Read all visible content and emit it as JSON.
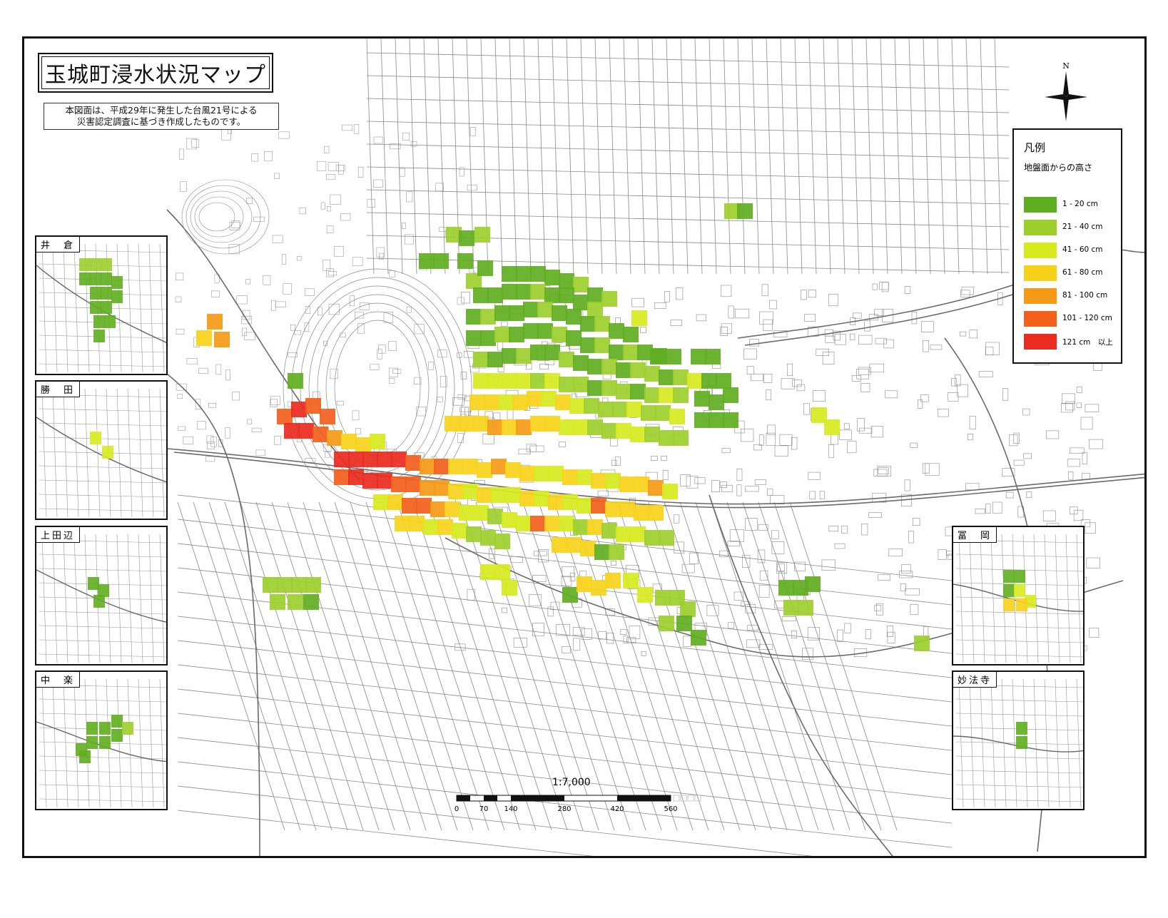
{
  "title": "玉城町浸水状況マップ",
  "note": [
    "本図面は、平成29年に発生した台風21号による",
    "災害認定調査に基づき作成したものです。"
  ],
  "legend": {
    "title": "凡例",
    "subtitle": "地盤面からの高さ",
    "items": [
      {
        "label": "1 - 20 cm",
        "color": "#5fae1f"
      },
      {
        "label": "21 - 40 cm",
        "color": "#9ccf2c"
      },
      {
        "label": "41 - 60 cm",
        "color": "#d7ea1d"
      },
      {
        "label": "61 - 80 cm",
        "color": "#f7d21a"
      },
      {
        "label": "81 - 100 cm",
        "color": "#f59a16"
      },
      {
        "label": "101 - 120 cm",
        "color": "#f2601b"
      },
      {
        "label": "121 cm　以上",
        "color": "#ea2b1f"
      }
    ]
  },
  "compass": {
    "north_label": "N"
  },
  "scale": {
    "ratio": "1:7,000",
    "ticks": [
      "0",
      "70",
      "140",
      "280",
      "420",
      "560"
    ]
  },
  "insets": [
    {
      "label": "井　倉"
    },
    {
      "label": "勝　田"
    },
    {
      "label": "上田辺"
    },
    {
      "label": "中　楽"
    },
    {
      "label": "冨　岡"
    },
    {
      "label": "妙法寺"
    }
  ],
  "flood_cells": [
    [
      622,
      315,
      2
    ],
    [
      640,
      320,
      1
    ],
    [
      662,
      315,
      2
    ],
    [
      650,
      380,
      2
    ],
    [
      666,
      362,
      1
    ],
    [
      584,
      352,
      1
    ],
    [
      604,
      352,
      1
    ],
    [
      638,
      352,
      1
    ],
    [
      700,
      370,
      1
    ],
    [
      720,
      370,
      1
    ],
    [
      740,
      370,
      1
    ],
    [
      760,
      375,
      1
    ],
    [
      780,
      380,
      1
    ],
    [
      800,
      385,
      2
    ],
    [
      820,
      400,
      1
    ],
    [
      840,
      405,
      2
    ],
    [
      660,
      400,
      1
    ],
    [
      680,
      400,
      1
    ],
    [
      700,
      395,
      1
    ],
    [
      720,
      395,
      1
    ],
    [
      740,
      395,
      2
    ],
    [
      760,
      400,
      1
    ],
    [
      780,
      400,
      1
    ],
    [
      800,
      410,
      1
    ],
    [
      820,
      420,
      2
    ],
    [
      650,
      430,
      1
    ],
    [
      670,
      430,
      2
    ],
    [
      690,
      425,
      1
    ],
    [
      710,
      425,
      1
    ],
    [
      730,
      420,
      1
    ],
    [
      750,
      420,
      2
    ],
    [
      770,
      425,
      1
    ],
    [
      790,
      430,
      1
    ],
    [
      810,
      440,
      1
    ],
    [
      830,
      440,
      2
    ],
    [
      850,
      450,
      1
    ],
    [
      870,
      455,
      1
    ],
    [
      650,
      460,
      1
    ],
    [
      670,
      460,
      1
    ],
    [
      690,
      455,
      2
    ],
    [
      710,
      455,
      1
    ],
    [
      730,
      450,
      1
    ],
    [
      750,
      450,
      1
    ],
    [
      770,
      455,
      2
    ],
    [
      790,
      460,
      1
    ],
    [
      810,
      470,
      1
    ],
    [
      830,
      470,
      2
    ],
    [
      850,
      480,
      1
    ],
    [
      870,
      480,
      2
    ],
    [
      890,
      480,
      1
    ],
    [
      910,
      485,
      1
    ],
    [
      660,
      490,
      2
    ],
    [
      680,
      490,
      1
    ],
    [
      700,
      485,
      1
    ],
    [
      720,
      485,
      2
    ],
    [
      740,
      480,
      1
    ],
    [
      760,
      480,
      1
    ],
    [
      780,
      490,
      2
    ],
    [
      800,
      495,
      1
    ],
    [
      820,
      500,
      1
    ],
    [
      840,
      500,
      2
    ],
    [
      860,
      505,
      1
    ],
    [
      880,
      505,
      2
    ],
    [
      900,
      510,
      2
    ],
    [
      920,
      515,
      1
    ],
    [
      940,
      515,
      2
    ],
    [
      960,
      520,
      3
    ],
    [
      980,
      520,
      1
    ],
    [
      1000,
      520,
      1
    ],
    [
      660,
      520,
      3
    ],
    [
      680,
      520,
      3
    ],
    [
      700,
      520,
      3
    ],
    [
      720,
      520,
      3
    ],
    [
      740,
      520,
      2
    ],
    [
      760,
      520,
      3
    ],
    [
      780,
      525,
      2
    ],
    [
      800,
      525,
      2
    ],
    [
      820,
      530,
      1
    ],
    [
      840,
      530,
      2
    ],
    [
      860,
      535,
      2
    ],
    [
      880,
      535,
      1
    ],
    [
      900,
      540,
      2
    ],
    [
      920,
      540,
      3
    ],
    [
      940,
      540,
      2
    ],
    [
      970,
      545,
      1
    ],
    [
      990,
      550,
      1
    ],
    [
      1010,
      540,
      1
    ],
    [
      655,
      550,
      4
    ],
    [
      675,
      550,
      4
    ],
    [
      695,
      550,
      3
    ],
    [
      715,
      550,
      4
    ],
    [
      735,
      545,
      4
    ],
    [
      755,
      545,
      3
    ],
    [
      775,
      550,
      4
    ],
    [
      795,
      555,
      3
    ],
    [
      815,
      555,
      2
    ],
    [
      835,
      560,
      2
    ],
    [
      855,
      560,
      2
    ],
    [
      875,
      560,
      3
    ],
    [
      895,
      565,
      2
    ],
    [
      915,
      565,
      2
    ],
    [
      935,
      570,
      3
    ],
    [
      970,
      575,
      1
    ],
    [
      990,
      575,
      1
    ],
    [
      1010,
      575,
      1
    ],
    [
      620,
      580,
      4
    ],
    [
      640,
      580,
      4
    ],
    [
      660,
      580,
      4
    ],
    [
      680,
      585,
      5
    ],
    [
      700,
      585,
      4
    ],
    [
      720,
      585,
      5
    ],
    [
      740,
      580,
      4
    ],
    [
      760,
      580,
      4
    ],
    [
      780,
      585,
      3
    ],
    [
      800,
      585,
      3
    ],
    [
      820,
      585,
      2
    ],
    [
      840,
      590,
      2
    ],
    [
      860,
      590,
      3
    ],
    [
      880,
      595,
      3
    ],
    [
      900,
      595,
      2
    ],
    [
      920,
      600,
      2
    ],
    [
      940,
      600,
      2
    ],
    [
      385,
      570,
      6
    ],
    [
      405,
      560,
      7
    ],
    [
      425,
      555,
      6
    ],
    [
      445,
      570,
      6
    ],
    [
      395,
      590,
      7
    ],
    [
      415,
      590,
      7
    ],
    [
      435,
      595,
      6
    ],
    [
      455,
      600,
      5
    ],
    [
      475,
      605,
      4
    ],
    [
      495,
      610,
      4
    ],
    [
      515,
      605,
      3
    ],
    [
      465,
      630,
      7
    ],
    [
      485,
      630,
      7
    ],
    [
      505,
      630,
      7
    ],
    [
      525,
      630,
      7
    ],
    [
      545,
      630,
      7
    ],
    [
      565,
      635,
      6
    ],
    [
      585,
      640,
      5
    ],
    [
      605,
      640,
      6
    ],
    [
      625,
      640,
      4
    ],
    [
      645,
      640,
      4
    ],
    [
      665,
      645,
      4
    ],
    [
      685,
      640,
      5
    ],
    [
      705,
      645,
      4
    ],
    [
      725,
      650,
      4
    ],
    [
      745,
      650,
      3
    ],
    [
      765,
      650,
      3
    ],
    [
      785,
      655,
      4
    ],
    [
      805,
      655,
      3
    ],
    [
      825,
      660,
      4
    ],
    [
      845,
      660,
      3
    ],
    [
      865,
      665,
      4
    ],
    [
      885,
      665,
      4
    ],
    [
      905,
      670,
      5
    ],
    [
      925,
      675,
      3
    ],
    [
      465,
      655,
      6
    ],
    [
      485,
      655,
      7
    ],
    [
      505,
      660,
      7
    ],
    [
      525,
      660,
      7
    ],
    [
      545,
      665,
      6
    ],
    [
      565,
      665,
      6
    ],
    [
      585,
      670,
      5
    ],
    [
      605,
      670,
      5
    ],
    [
      625,
      675,
      4
    ],
    [
      645,
      675,
      3
    ],
    [
      665,
      680,
      4
    ],
    [
      685,
      680,
      3
    ],
    [
      705,
      680,
      3
    ],
    [
      725,
      685,
      4
    ],
    [
      745,
      685,
      3
    ],
    [
      765,
      690,
      4
    ],
    [
      785,
      690,
      3
    ],
    [
      805,
      695,
      3
    ],
    [
      825,
      695,
      6
    ],
    [
      845,
      700,
      4
    ],
    [
      865,
      700,
      4
    ],
    [
      885,
      705,
      4
    ],
    [
      905,
      705,
      4
    ],
    [
      520,
      690,
      3
    ],
    [
      540,
      690,
      4
    ],
    [
      560,
      695,
      6
    ],
    [
      580,
      695,
      6
    ],
    [
      600,
      700,
      5
    ],
    [
      620,
      700,
      4
    ],
    [
      640,
      705,
      3
    ],
    [
      660,
      705,
      3
    ],
    [
      680,
      710,
      2
    ],
    [
      700,
      715,
      3
    ],
    [
      720,
      720,
      3
    ],
    [
      740,
      720,
      6
    ],
    [
      760,
      720,
      4
    ],
    [
      780,
      720,
      3
    ],
    [
      800,
      725,
      2
    ],
    [
      820,
      725,
      4
    ],
    [
      840,
      730,
      2
    ],
    [
      860,
      735,
      3
    ],
    [
      880,
      735,
      3
    ],
    [
      900,
      740,
      2
    ],
    [
      920,
      740,
      2
    ],
    [
      550,
      720,
      4
    ],
    [
      570,
      720,
      4
    ],
    [
      590,
      725,
      3
    ],
    [
      610,
      725,
      4
    ],
    [
      630,
      730,
      3
    ],
    [
      650,
      735,
      2
    ],
    [
      670,
      740,
      2
    ],
    [
      690,
      745,
      2
    ],
    [
      770,
      750,
      4
    ],
    [
      790,
      750,
      4
    ],
    [
      810,
      755,
      4
    ],
    [
      830,
      760,
      1
    ],
    [
      850,
      760,
      2
    ],
    [
      400,
      520,
      1
    ],
    [
      287,
      437,
      5
    ],
    [
      272,
      460,
      4
    ],
    [
      297,
      462,
      5
    ],
    [
      882,
      432,
      3
    ],
    [
      908,
      486,
      1
    ],
    [
      930,
      486,
      1
    ],
    [
      965,
      486,
      1
    ],
    [
      985,
      486,
      1
    ],
    [
      1012,
      282,
      2
    ],
    [
      1030,
      282,
      1
    ],
    [
      1134,
      568,
      3
    ],
    [
      1152,
      585,
      3
    ],
    [
      365,
      806,
      2
    ],
    [
      385,
      806,
      2
    ],
    [
      405,
      806,
      2
    ],
    [
      425,
      806,
      2
    ],
    [
      375,
      830,
      2
    ],
    [
      400,
      830,
      2
    ],
    [
      422,
      830,
      1
    ],
    [
      670,
      788,
      3
    ],
    [
      690,
      788,
      3
    ],
    [
      700,
      810,
      3
    ],
    [
      785,
      820,
      1
    ],
    [
      805,
      805,
      4
    ],
    [
      825,
      810,
      4
    ],
    [
      845,
      800,
      4
    ],
    [
      870,
      800,
      3
    ],
    [
      890,
      820,
      3
    ],
    [
      915,
      824,
      2
    ],
    [
      935,
      824,
      2
    ],
    [
      950,
      840,
      2
    ],
    [
      920,
      860,
      2
    ],
    [
      945,
      860,
      1
    ],
    [
      965,
      880,
      1
    ],
    [
      1088,
      810,
      1
    ],
    [
      1108,
      810,
      1
    ],
    [
      1125,
      805,
      1
    ],
    [
      1095,
      838,
      2
    ],
    [
      1115,
      838,
      2
    ],
    [
      1278,
      888,
      2
    ]
  ]
}
